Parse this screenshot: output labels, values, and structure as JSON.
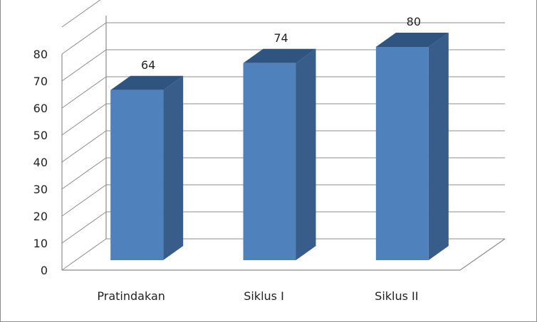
{
  "chart_data": {
    "type": "bar",
    "style": "3d-column",
    "categories": [
      "Pratindakan",
      "Siklus I",
      "Siklus II"
    ],
    "values": [
      64,
      74,
      80
    ],
    "data_labels": [
      "64",
      "74",
      "80"
    ],
    "ylim": [
      0,
      80
    ],
    "ytick_step": 10,
    "yticks": [
      "0",
      "10",
      "20",
      "30",
      "40",
      "50",
      "60",
      "70",
      "80"
    ],
    "grid": true,
    "legend": "none",
    "colors": {
      "bar_front": "#4f81bd",
      "bar_side": "#385d8a",
      "bar_top": "#2f5480",
      "grid": "#8c8c8c"
    }
  }
}
